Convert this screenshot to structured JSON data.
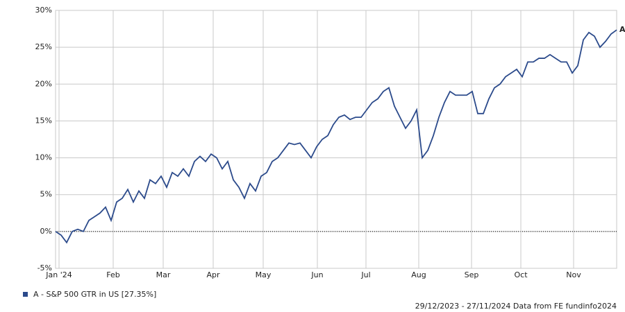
{
  "chart_data": {
    "type": "line",
    "series": [
      {
        "name": "A - S&P 500 GTR in US [27.35%]",
        "color": "#2b4a8b",
        "values": [
          0,
          -0.5,
          -1.5,
          0,
          0.3,
          0,
          1.5,
          2,
          2.5,
          3.3,
          1.5,
          4,
          4.5,
          5.7,
          4,
          5.5,
          4.5,
          7,
          6.5,
          7.5,
          6,
          8,
          7.5,
          8.5,
          7.5,
          9.5,
          10.2,
          9.5,
          10.5,
          10,
          8.5,
          9.5,
          7,
          6,
          4.5,
          6.5,
          5.5,
          7.5,
          8,
          9.5,
          10,
          11,
          12,
          11.8,
          12,
          11,
          10,
          11.5,
          12.5,
          13,
          14.5,
          15.5,
          15.8,
          15.2,
          15.5,
          15.5,
          16.5,
          17.5,
          18,
          19,
          19.5,
          17,
          15.5,
          14,
          15,
          16.5,
          10,
          11,
          13,
          15.5,
          17.5,
          19,
          18.5,
          18.5,
          18.5,
          19,
          16,
          16,
          18,
          19.5,
          20,
          21,
          21.5,
          22,
          21,
          23,
          23,
          23.5,
          23.5,
          24,
          23.5,
          23,
          23,
          21.5,
          22.5,
          26,
          27,
          26.5,
          25,
          25.8,
          26.8,
          27.35
        ],
        "end_label": "A"
      }
    ],
    "xlim": [
      0,
      101
    ],
    "xticks": [
      {
        "value": 0.625,
        "label": "Jan '24"
      },
      {
        "value": 10.375,
        "label": "Feb"
      },
      {
        "value": 19.375,
        "label": "Mar"
      },
      {
        "value": 28.375,
        "label": "Apr"
      },
      {
        "value": 37.375,
        "label": "May"
      },
      {
        "value": 47.125,
        "label": "Jun"
      },
      {
        "value": 55.875,
        "label": "Jul"
      },
      {
        "value": 65.375,
        "label": "Aug"
      },
      {
        "value": 74.875,
        "label": "Sep"
      },
      {
        "value": 83.75,
        "label": "Oct"
      },
      {
        "value": 93.25,
        "label": "Nov"
      }
    ],
    "ylim": [
      -5,
      30
    ],
    "yticks": [
      {
        "value": -5,
        "label": "-5%"
      },
      {
        "value": 0,
        "label": "0%"
      },
      {
        "value": 5,
        "label": "5%"
      },
      {
        "value": 10,
        "label": "10%"
      },
      {
        "value": 15,
        "label": "15%"
      },
      {
        "value": 20,
        "label": "20%"
      },
      {
        "value": 25,
        "label": "25%"
      },
      {
        "value": 30,
        "label": "30%"
      }
    ],
    "grid": true,
    "footer": "29/12/2023 - 27/11/2024 Data from FE fundinfo2024"
  }
}
